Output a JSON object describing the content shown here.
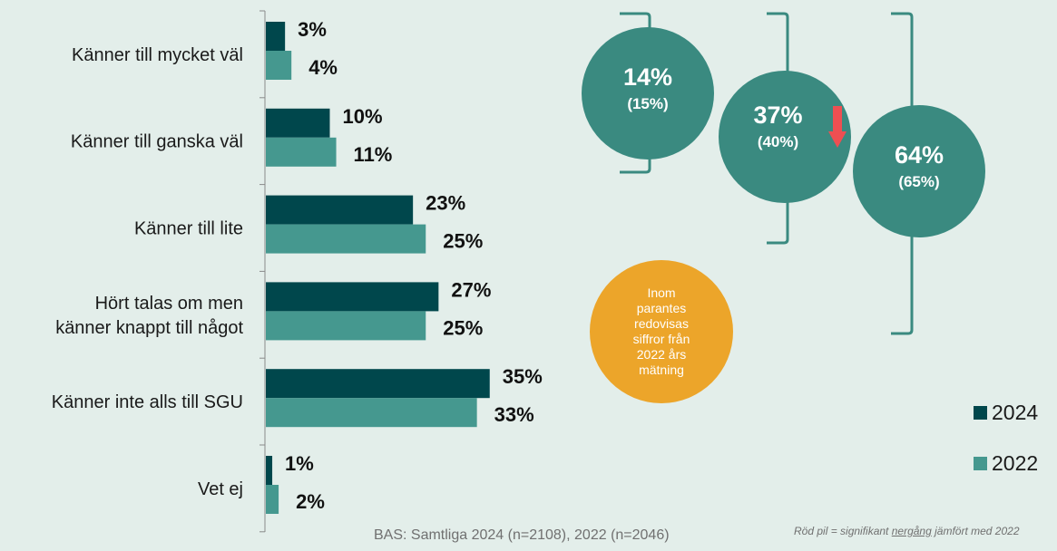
{
  "colors": {
    "series_2024": "#00474c",
    "series_2022": "#45988f",
    "circle": "#3a8a80",
    "note_circle": "#eca52a",
    "arrow": "#ee4f52",
    "background": "#e3eeea"
  },
  "chart_data": {
    "type": "bar",
    "orientation": "horizontal",
    "categories": [
      "Känner till mycket väl",
      "Känner till ganska väl",
      "Känner till lite",
      "Hört talas om men känner knappt till något",
      "Känner inte alls till SGU",
      "Vet ej"
    ],
    "category_lines": [
      [
        "Känner till mycket väl"
      ],
      [
        "Känner till ganska väl"
      ],
      [
        "Känner till lite"
      ],
      [
        "Hört talas om men",
        "känner knappt till något"
      ],
      [
        "Känner inte alls till SGU"
      ],
      [
        "Vet ej"
      ]
    ],
    "series": [
      {
        "name": "2024",
        "values": [
          3,
          10,
          23,
          27,
          35,
          1
        ],
        "labels": [
          "3%",
          "10%",
          "23%",
          "27%",
          "35%",
          "1%"
        ]
      },
      {
        "name": "2022",
        "values": [
          4,
          11,
          25,
          25,
          33,
          2
        ],
        "labels": [
          "4%",
          "11%",
          "25%",
          "25%",
          "33%",
          "2%"
        ]
      }
    ],
    "xlim": [
      0,
      40
    ],
    "legend": {
      "position": "bottom-right",
      "items": [
        "2024",
        "2022"
      ]
    }
  },
  "summary_circles": [
    {
      "value": "14%",
      "previous": "(15%)"
    },
    {
      "value": "37%",
      "previous": "(40%)",
      "significant_decrease": true
    },
    {
      "value": "64%",
      "previous": "(65%)"
    }
  ],
  "note_circle_text": "Inom parantes redovisas siffror från 2022 års mätning",
  "base_note": "BAS: Samtliga 2024 (n=2108), 2022 (n=2046)",
  "footnote": {
    "before": "Röd pil = signifikant ",
    "underlined": "nergång",
    "after": " jämfört med 2022"
  },
  "icons": {
    "decrease_arrow": "arrow-down-icon"
  }
}
